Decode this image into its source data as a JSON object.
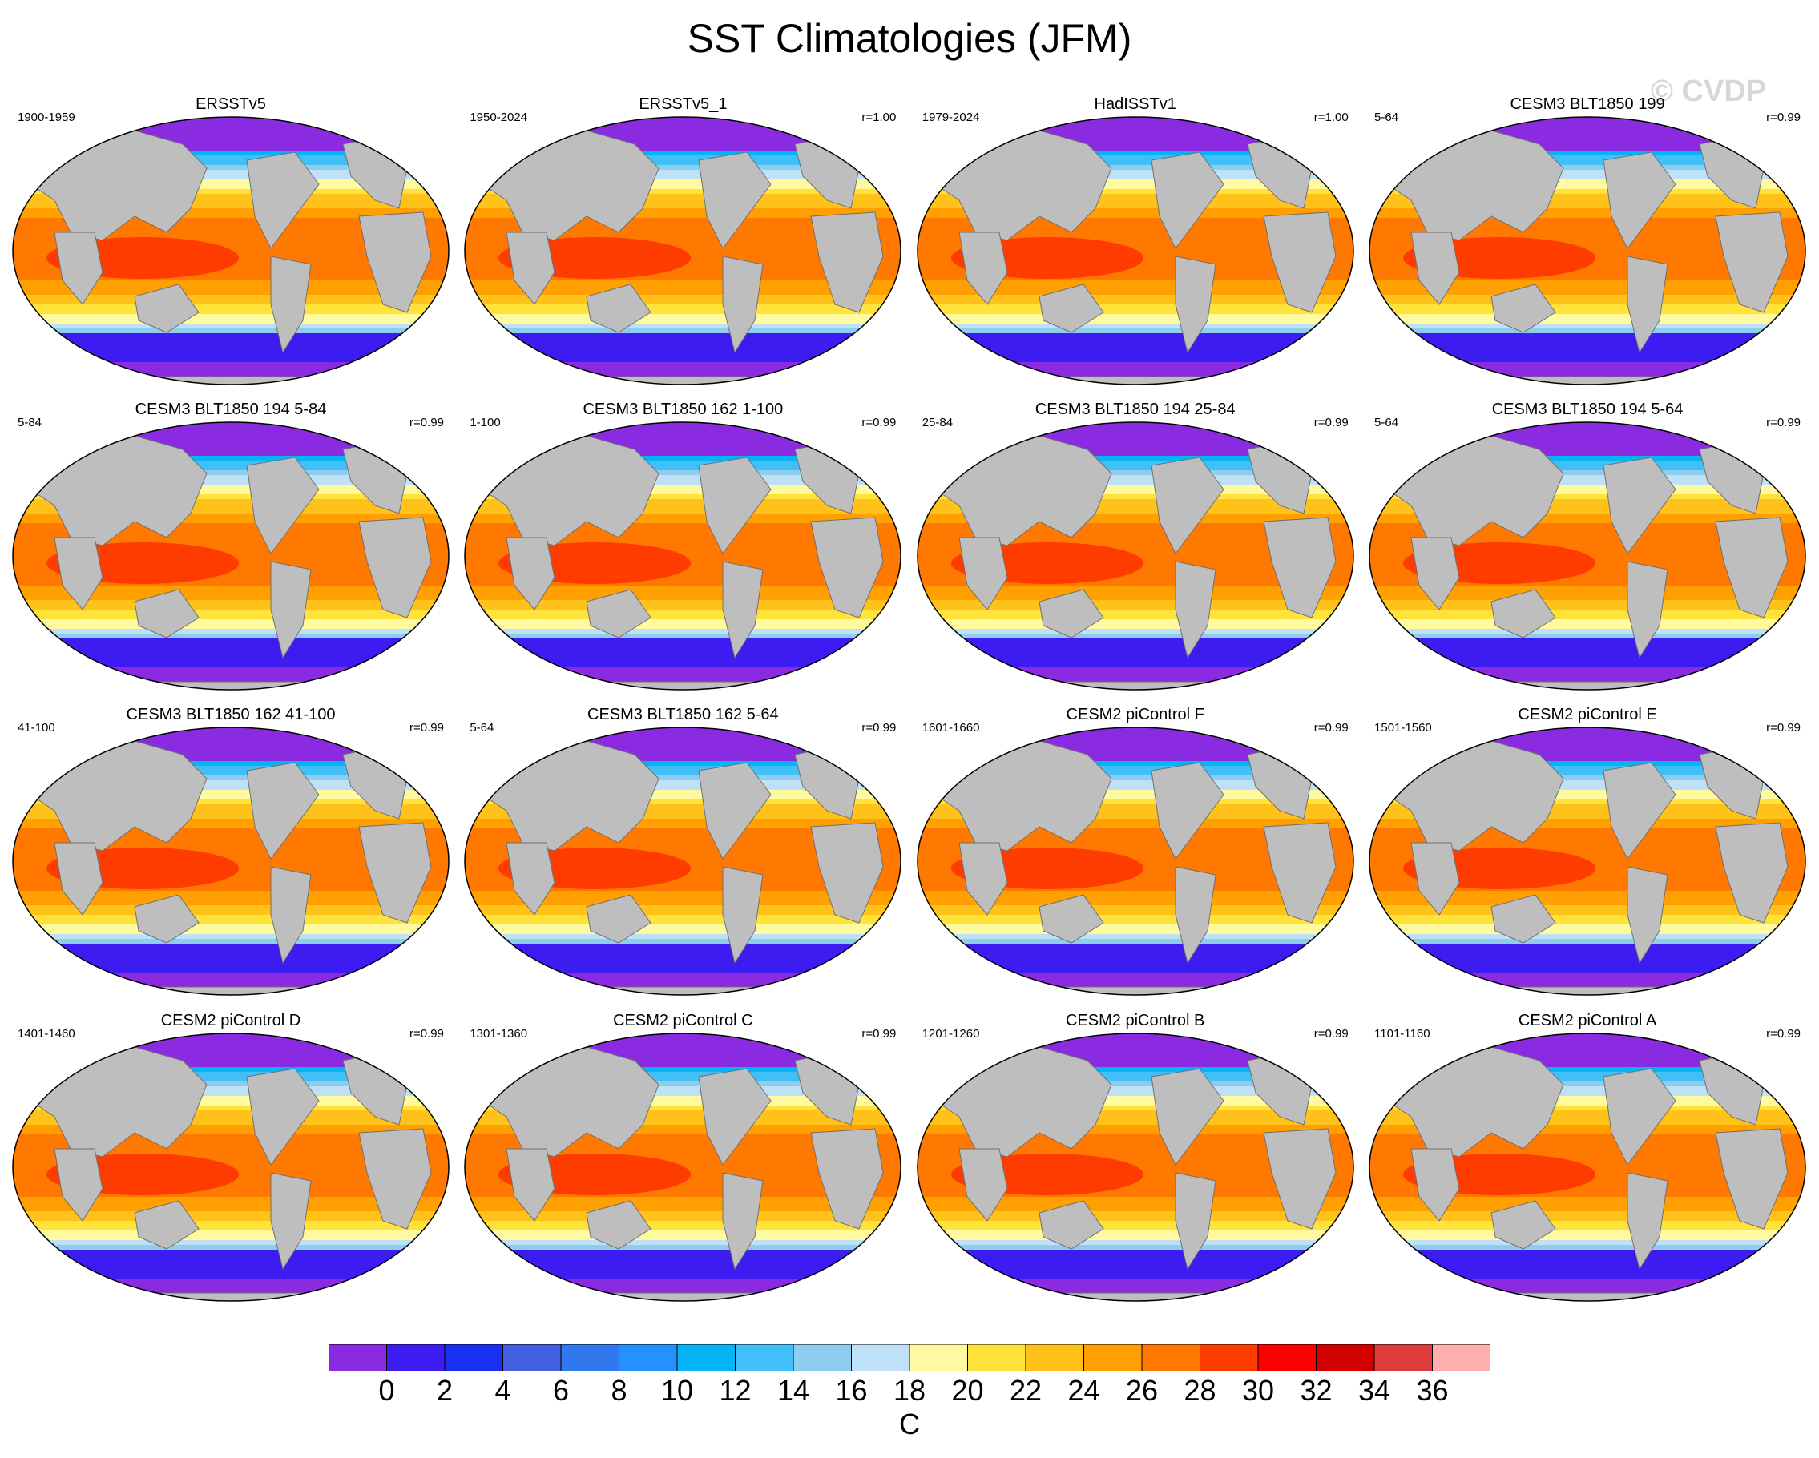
{
  "title": "SST Climatologies (JFM)",
  "watermark": "© CVDP",
  "chart_data": {
    "type": "heatmap",
    "title": "SST Climatologies (JFM)",
    "projection": "Robinson-like global map",
    "units": "C",
    "colorbar": {
      "levels": [
        0,
        2,
        4,
        6,
        8,
        10,
        12,
        14,
        16,
        18,
        20,
        22,
        24,
        26,
        28,
        30,
        32,
        34,
        36
      ],
      "tick_labels": [
        "0",
        "2",
        "4",
        "6",
        "8",
        "10",
        "12",
        "14",
        "16",
        "18",
        "20",
        "22",
        "24",
        "26",
        "28",
        "30",
        "32",
        "34",
        "36"
      ],
      "colors": [
        "#8a2be2",
        "#3c1cf0",
        "#1a30f0",
        "#4460e0",
        "#2f78ee",
        "#2590ff",
        "#05b4f5",
        "#40c0f7",
        "#8ecdee",
        "#bfe1f7",
        "#fffaa0",
        "#ffe23a",
        "#ffc21a",
        "#ffa000",
        "#ff7800",
        "#ff3c00",
        "#ff0000",
        "#d20000",
        "#de3c3c",
        "#ffaeb0"
      ],
      "land_color": "#bebebe",
      "missing_color": "#ffffff"
    },
    "panels": [
      {
        "title": "ERSSTv5",
        "period": "1900-1959",
        "r": ""
      },
      {
        "title": "ERSSTv5_1",
        "period": "1950-2024",
        "r": "r=1.00"
      },
      {
        "title": "HadISSTv1",
        "period": "1979-2024",
        "r": "r=1.00"
      },
      {
        "title": "CESM3 BLT1850 199",
        "period": "5-64",
        "r": "r=0.99"
      },
      {
        "title": "CESM3 BLT1850 194 5-84",
        "period": "5-84",
        "r": "r=0.99"
      },
      {
        "title": "CESM3 BLT1850 162 1-100",
        "period": "1-100",
        "r": "r=0.99"
      },
      {
        "title": "CESM3 BLT1850 194 25-84",
        "period": "25-84",
        "r": "r=0.99"
      },
      {
        "title": "CESM3 BLT1850 194 5-64",
        "period": "5-64",
        "r": "r=0.99"
      },
      {
        "title": "CESM3 BLT1850 162 41-100",
        "period": "41-100",
        "r": "r=0.99"
      },
      {
        "title": "CESM3 BLT1850 162 5-64",
        "period": "5-64",
        "r": "r=0.99"
      },
      {
        "title": "CESM2 piControl F",
        "period": "1601-1660",
        "r": "r=0.99"
      },
      {
        "title": "CESM2 piControl E",
        "period": "1501-1560",
        "r": "r=0.99"
      },
      {
        "title": "CESM2 piControl D",
        "period": "1401-1460",
        "r": "r=0.99"
      },
      {
        "title": "CESM2 piControl C",
        "period": "1301-1360",
        "r": "r=0.99"
      },
      {
        "title": "CESM2 piControl B",
        "period": "1201-1260",
        "r": "r=0.99"
      },
      {
        "title": "CESM2 piControl A",
        "period": "1101-1160",
        "r": "r=0.99"
      }
    ]
  }
}
